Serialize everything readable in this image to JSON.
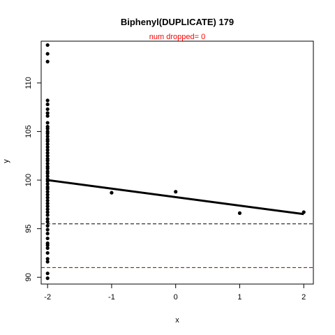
{
  "chart_data": {
    "type": "scatter",
    "title": "Biphenyl(DUPLICATE) 179",
    "subtitle": "num dropped= 0",
    "xlabel": "x",
    "ylabel": "y",
    "xlim": [
      -2.1,
      2.15
    ],
    "ylim": [
      89.3,
      114.3
    ],
    "x_ticks": [
      -2,
      -1,
      0,
      1,
      2
    ],
    "y_ticks": [
      90,
      95,
      100,
      105,
      110
    ],
    "points": [
      [
        -2,
        113.9
      ],
      [
        -2,
        113.0
      ],
      [
        -2,
        112.2
      ],
      [
        -2,
        108.2
      ],
      [
        -2,
        107.8
      ],
      [
        -2,
        107.3
      ],
      [
        -2,
        106.9
      ],
      [
        -2,
        106.6
      ],
      [
        -2,
        105.9
      ],
      [
        -2,
        105.5
      ],
      [
        -2,
        105.3
      ],
      [
        -2,
        105.0
      ],
      [
        -2,
        104.8
      ],
      [
        -2,
        104.5
      ],
      [
        -2,
        104.2
      ],
      [
        -2,
        104.0
      ],
      [
        -2,
        103.7
      ],
      [
        -2,
        103.4
      ],
      [
        -2,
        103.1
      ],
      [
        -2,
        102.8
      ],
      [
        -2,
        102.5
      ],
      [
        -2,
        102.2
      ],
      [
        -2,
        102.0
      ],
      [
        -2,
        101.7
      ],
      [
        -2,
        101.4
      ],
      [
        -2,
        101.2
      ],
      [
        -2,
        100.9
      ],
      [
        -2,
        100.7
      ],
      [
        -2,
        100.4
      ],
      [
        -2,
        100.1
      ],
      [
        -2,
        99.9
      ],
      [
        -2,
        99.6
      ],
      [
        -2,
        99.3
      ],
      [
        -2,
        99.1
      ],
      [
        -2,
        98.8
      ],
      [
        -2,
        98.5
      ],
      [
        -2,
        98.2
      ],
      [
        -2,
        97.9
      ],
      [
        -2,
        97.6
      ],
      [
        -2,
        97.3
      ],
      [
        -2,
        97.0
      ],
      [
        -2,
        96.7
      ],
      [
        -2,
        96.4
      ],
      [
        -2,
        96.0
      ],
      [
        -2,
        95.7
      ],
      [
        -2,
        95.3
      ],
      [
        -2,
        94.9
      ],
      [
        -2,
        94.5
      ],
      [
        -2,
        94.0
      ],
      [
        -2,
        93.5
      ],
      [
        -2,
        93.3
      ],
      [
        -2,
        93.0
      ],
      [
        -2,
        92.5
      ],
      [
        -2,
        91.9
      ],
      [
        -2,
        91.6
      ],
      [
        -2,
        90.4
      ],
      [
        -2,
        89.9
      ],
      [
        -1,
        98.7
      ],
      [
        0,
        98.8
      ],
      [
        1,
        96.6
      ],
      [
        2,
        96.7
      ]
    ],
    "fit_line": {
      "x": [
        -2,
        2
      ],
      "y": [
        100.0,
        96.5
      ]
    },
    "hlines": [
      {
        "y": 95.5,
        "color": "#000000",
        "style": "dashed"
      },
      {
        "y": 91.0,
        "color": "#8b0000",
        "style": "dashed"
      }
    ],
    "subtitle_color": "#ff0000",
    "grid": false,
    "legend": "none"
  }
}
